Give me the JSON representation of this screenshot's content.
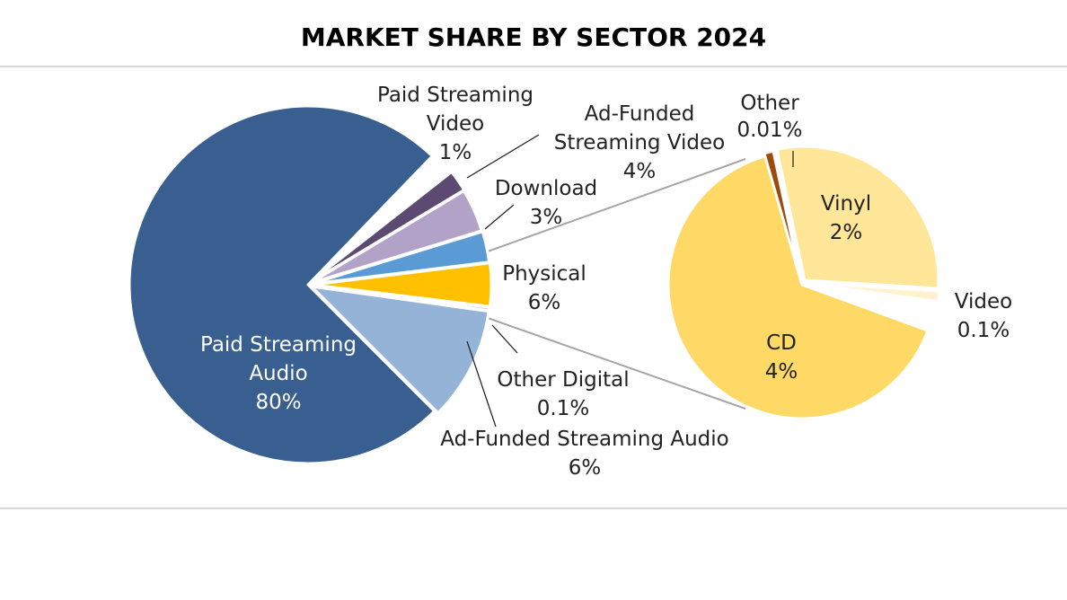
{
  "chart_data": {
    "type": "pie",
    "title": "MARKET SHARE BY SECTOR 2024",
    "main_pie": [
      {
        "key": "paid_audio",
        "label_lines": [
          "Paid Streaming",
          "Audio"
        ],
        "value_label": "80%",
        "value": 80,
        "color": "#385f8f"
      },
      {
        "key": "paid_video",
        "label_lines": [
          "Paid Streaming",
          "Video"
        ],
        "value_label": "1%",
        "value": 1,
        "color": "#5c4a72"
      },
      {
        "key": "ad_video",
        "label_lines": [
          "Ad-Funded",
          "Streaming Video"
        ],
        "value_label": "4%",
        "value": 4,
        "color": "#b3a2c7"
      },
      {
        "key": "download",
        "label_lines": [
          "Download"
        ],
        "value_label": "3%",
        "value": 3,
        "color": "#5b9bd5"
      },
      {
        "key": "physical",
        "label_lines": [
          "Physical"
        ],
        "value_label": "6%",
        "value": 6,
        "color": "#ffc000"
      },
      {
        "key": "other_digital",
        "label_lines": [
          "Other Digital"
        ],
        "value_label": "0.1%",
        "value": 0.1,
        "color": "#8fa9d0"
      },
      {
        "key": "ad_audio",
        "label_lines": [
          "Ad-Funded Streaming Audio"
        ],
        "value_label": "6%",
        "value": 6,
        "color": "#95b3d7"
      }
    ],
    "breakout_of": "Physical",
    "breakout_pie": [
      {
        "key": "cd",
        "label_lines": [
          "CD"
        ],
        "value_label": "4%",
        "value": 4,
        "color": "#ffd966"
      },
      {
        "key": "other",
        "label_lines": [
          "Other"
        ],
        "value_label": "0.01%",
        "value": 0.01,
        "color": "#9e4a0e"
      },
      {
        "key": "vinyl",
        "label_lines": [
          "Vinyl"
        ],
        "value_label": "2%",
        "value": 2,
        "color": "#ffe699"
      },
      {
        "key": "video",
        "label_lines": [
          "Video"
        ],
        "value_label": "0.1%",
        "value": 0.1,
        "color": "#fff2cc"
      }
    ]
  }
}
